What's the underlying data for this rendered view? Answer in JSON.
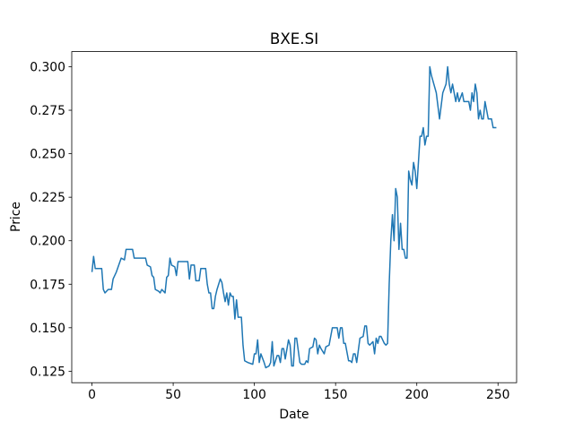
{
  "chart_data": {
    "type": "line",
    "title": "BXE.SI",
    "xlabel": "Date",
    "ylabel": "Price",
    "color": "#1f77b4",
    "x": [
      0,
      1,
      2,
      6,
      7,
      8,
      10,
      12,
      13,
      15,
      18,
      20,
      21,
      25,
      26,
      33,
      34,
      36,
      37,
      38,
      39,
      41,
      42,
      43,
      45,
      46,
      47,
      48,
      49,
      51,
      52,
      53,
      59,
      60,
      61,
      63,
      64,
      66,
      67,
      70,
      71,
      72,
      73,
      74,
      75,
      76,
      77,
      78,
      79,
      80,
      81,
      82,
      83,
      84,
      85,
      86,
      87,
      88,
      89,
      90,
      92,
      93,
      94,
      96,
      99,
      100,
      101,
      102,
      103,
      104,
      106,
      107,
      109,
      110,
      111,
      112,
      114,
      115,
      116,
      117,
      118,
      119,
      121,
      122,
      123,
      124,
      125,
      126,
      128,
      129,
      131,
      132,
      133,
      134,
      136,
      137,
      138,
      139,
      140,
      141,
      143,
      144,
      146,
      147,
      148,
      151,
      152,
      153,
      154,
      155,
      156,
      158,
      159,
      160,
      161,
      162,
      163,
      165,
      167,
      168,
      169,
      170,
      171,
      173,
      174,
      175,
      176,
      177,
      178,
      180,
      181,
      182,
      183,
      184,
      185,
      186,
      187,
      188,
      189,
      190,
      191,
      192,
      193,
      194,
      195,
      196,
      197,
      198,
      199,
      200,
      201,
      202,
      203,
      204,
      205,
      206,
      207,
      208,
      209,
      212,
      214,
      216,
      218,
      219,
      220,
      221,
      222,
      223,
      224,
      225,
      226,
      228,
      229,
      232,
      233,
      234,
      235,
      236,
      237,
      238,
      239,
      240,
      241,
      242,
      243,
      244,
      246,
      247,
      249
    ],
    "values": [
      0.182,
      0.191,
      0.184,
      0.184,
      0.172,
      0.17,
      0.172,
      0.172,
      0.178,
      0.182,
      0.19,
      0.189,
      0.195,
      0.195,
      0.19,
      0.19,
      0.186,
      0.185,
      0.18,
      0.179,
      0.172,
      0.171,
      0.17,
      0.172,
      0.17,
      0.179,
      0.18,
      0.19,
      0.186,
      0.185,
      0.18,
      0.188,
      0.188,
      0.178,
      0.186,
      0.186,
      0.177,
      0.177,
      0.184,
      0.184,
      0.175,
      0.17,
      0.17,
      0.161,
      0.161,
      0.168,
      0.172,
      0.175,
      0.178,
      0.176,
      0.17,
      0.165,
      0.17,
      0.163,
      0.17,
      0.168,
      0.168,
      0.155,
      0.166,
      0.156,
      0.156,
      0.14,
      0.131,
      0.13,
      0.129,
      0.135,
      0.135,
      0.143,
      0.13,
      0.135,
      0.13,
      0.127,
      0.128,
      0.13,
      0.142,
      0.128,
      0.134,
      0.134,
      0.13,
      0.138,
      0.138,
      0.132,
      0.143,
      0.14,
      0.128,
      0.128,
      0.144,
      0.144,
      0.13,
      0.129,
      0.129,
      0.131,
      0.13,
      0.138,
      0.139,
      0.144,
      0.143,
      0.135,
      0.14,
      0.138,
      0.135,
      0.139,
      0.14,
      0.145,
      0.15,
      0.15,
      0.144,
      0.15,
      0.15,
      0.141,
      0.141,
      0.131,
      0.131,
      0.13,
      0.135,
      0.135,
      0.13,
      0.144,
      0.145,
      0.151,
      0.151,
      0.141,
      0.14,
      0.142,
      0.135,
      0.144,
      0.141,
      0.145,
      0.145,
      0.141,
      0.14,
      0.141,
      0.175,
      0.2,
      0.215,
      0.2,
      0.23,
      0.225,
      0.195,
      0.21,
      0.195,
      0.195,
      0.19,
      0.19,
      0.24,
      0.235,
      0.232,
      0.245,
      0.24,
      0.23,
      0.245,
      0.26,
      0.26,
      0.265,
      0.255,
      0.26,
      0.26,
      0.3,
      0.295,
      0.285,
      0.27,
      0.285,
      0.29,
      0.3,
      0.29,
      0.285,
      0.29,
      0.285,
      0.28,
      0.285,
      0.28,
      0.285,
      0.28,
      0.28,
      0.275,
      0.285,
      0.28,
      0.29,
      0.285,
      0.27,
      0.275,
      0.27,
      0.27,
      0.28,
      0.275,
      0.27,
      0.27,
      0.265,
      0.265
    ],
    "xlim": [
      -12.45,
      261.45
    ],
    "xticks": [
      0,
      50,
      100,
      150,
      200,
      250
    ],
    "ylim": [
      0.1184,
      0.3087
    ],
    "yticks": [
      0.125,
      {
        "value": 0.15,
        "label": "0.150"
      },
      0.175,
      {
        "value": 0.2,
        "label": "0.200"
      },
      0.225,
      {
        "value": 0.25,
        "label": "0.250"
      },
      0.275,
      {
        "value": 0.3,
        "label": "0.300"
      }
    ]
  }
}
